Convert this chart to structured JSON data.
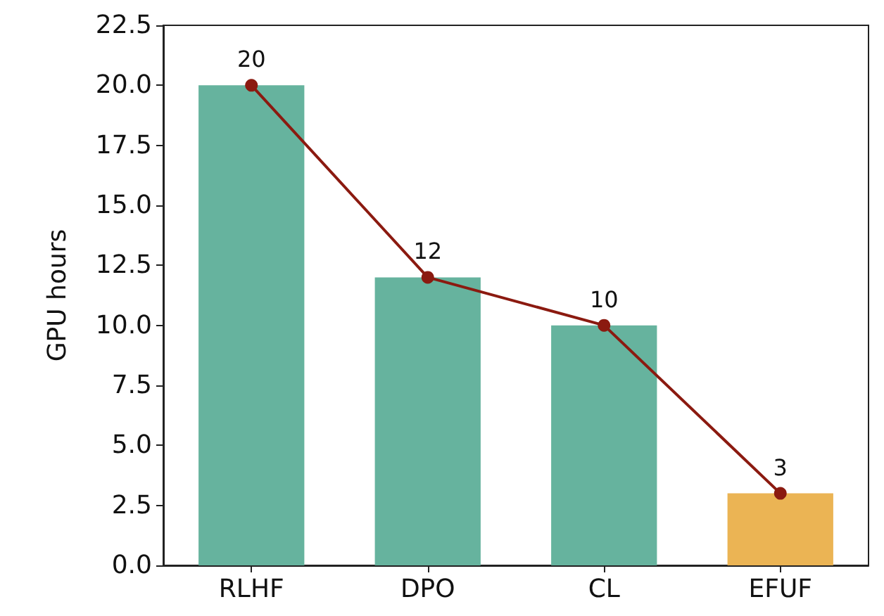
{
  "chart_data": {
    "type": "bar",
    "ylabel": "GPU hours",
    "categories": [
      "RLHF",
      "DPO",
      "CL",
      "EFUF"
    ],
    "series": [
      {
        "colors": [
          "#66b39e",
          "#66b39e",
          "#66b39e",
          "#ebb454"
        ],
        "values": [
          20,
          12,
          10,
          3
        ]
      },
      {
        "type": "line",
        "color": "#8b1a10",
        "values": [
          20,
          12,
          10,
          3
        ],
        "marker": "circle",
        "data_labels": true
      }
    ],
    "ylim": [
      0,
      22.5
    ],
    "yticks": [
      {
        "value": 0,
        "label": "0.0"
      },
      {
        "value": 2.5,
        "label": "2.5"
      },
      {
        "value": 5,
        "label": "5.0"
      },
      {
        "value": 7.5,
        "label": "7.5"
      },
      {
        "value": 10,
        "label": "10.0"
      },
      {
        "value": 12.5,
        "label": "12.5"
      },
      {
        "value": 15,
        "label": "15.0"
      },
      {
        "value": 17.5,
        "label": "17.5"
      },
      {
        "value": 20,
        "label": "20.0"
      },
      {
        "value": 22.5,
        "label": "22.5"
      }
    ],
    "grid": false
  }
}
